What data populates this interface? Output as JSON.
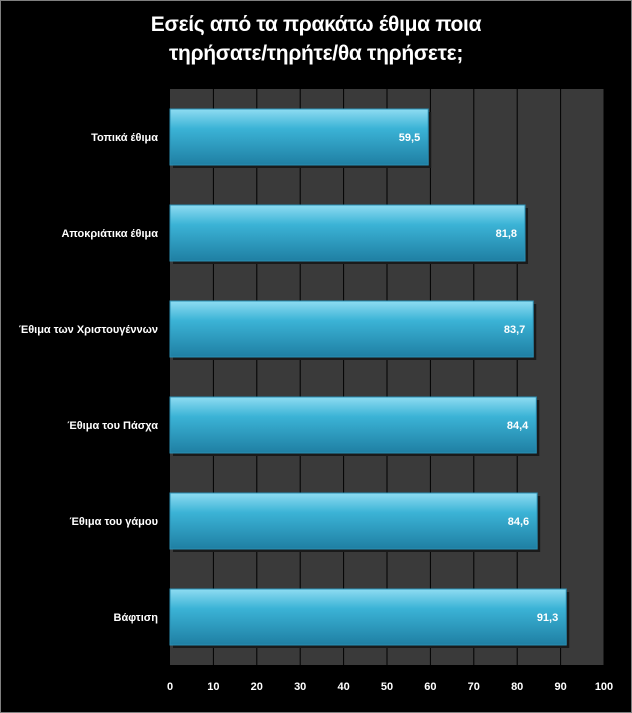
{
  "chart_data": {
    "type": "bar",
    "orientation": "horizontal",
    "title_lines": [
      "Εσείς από τα πρακάτω έθιμα ποια",
      "τηρήσατε/τηρήτε/θα τηρήσετε;"
    ],
    "categories": [
      "Τοπικά έθιμα",
      "Αποκριάτικα έθιμα",
      "Έθιμα των Χριστουγέννων",
      "Έθιμα του Πάσχα",
      "Έθιμα του γάμου",
      "Βάφτιση"
    ],
    "values": [
      59.5,
      81.8,
      83.7,
      84.4,
      84.6,
      91.3
    ],
    "value_labels": [
      "59,5",
      "81,8",
      "83,7",
      "84,4",
      "84,6",
      "91,3"
    ],
    "xlim": [
      0,
      100
    ],
    "x_ticks": [
      0,
      10,
      20,
      30,
      40,
      50,
      60,
      70,
      80,
      90,
      100
    ],
    "grid": true,
    "legend": "none",
    "colors": {
      "background": "#000000",
      "plot_background": "#3a3a3a",
      "gridline": "#000000",
      "bar": "#3bb3d6",
      "bar_light": "#8fdcf2",
      "bar_dark": "#1f7fa3",
      "text": "#ffffff"
    }
  }
}
